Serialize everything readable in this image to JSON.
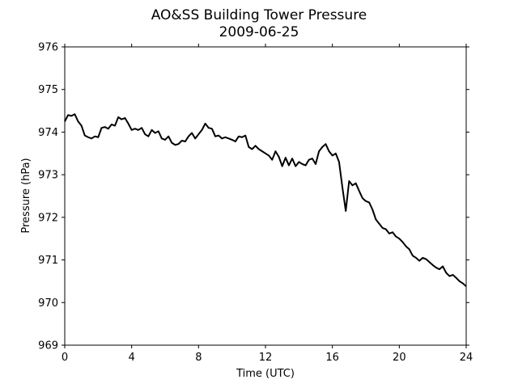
{
  "chart_data": {
    "type": "line",
    "title": "AO&SS Building Tower Pressure",
    "subtitle": "2009-06-25",
    "xlabel": "Time (UTC)",
    "ylabel": "Pressure (hPa)",
    "xlim": [
      0,
      24
    ],
    "ylim": [
      969,
      976
    ],
    "xticks": [
      0,
      4,
      8,
      12,
      16,
      20,
      24
    ],
    "yticks": [
      969,
      970,
      971,
      972,
      973,
      974,
      975,
      976
    ],
    "grid": false,
    "line_color": "#000000",
    "series": [
      {
        "x": [
          0,
          0.2,
          0.4,
          0.6,
          0.8,
          1.0,
          1.2,
          1.4,
          1.6,
          1.8,
          2.0,
          2.2,
          2.4,
          2.6,
          2.8,
          3.0,
          3.2,
          3.4,
          3.6,
          3.8,
          4.0,
          4.2,
          4.4,
          4.6,
          4.8,
          5.0,
          5.2,
          5.4,
          5.6,
          5.8,
          6.0,
          6.2,
          6.4,
          6.6,
          6.8,
          7.0,
          7.2,
          7.4,
          7.6,
          7.8,
          8.0,
          8.2,
          8.4,
          8.6,
          8.8,
          9.0,
          9.2,
          9.4,
          9.6,
          9.8,
          10.0,
          10.2,
          10.4,
          10.6,
          10.8,
          11.0,
          11.2,
          11.4,
          11.6,
          11.8,
          12.0,
          12.2,
          12.4,
          12.6,
          12.8,
          13.0,
          13.2,
          13.4,
          13.6,
          13.8,
          14.0,
          14.2,
          14.4,
          14.6,
          14.8,
          15.0,
          15.2,
          15.4,
          15.6,
          15.8,
          16.0,
          16.2,
          16.4,
          16.6,
          16.8,
          17.0,
          17.2,
          17.4,
          17.6,
          17.8,
          18.0,
          18.2,
          18.4,
          18.6,
          18.8,
          19.0,
          19.2,
          19.4,
          19.6,
          19.8,
          20.0,
          20.2,
          20.4,
          20.6,
          20.8,
          21.0,
          21.2,
          21.4,
          21.6,
          21.8,
          22.0,
          22.2,
          22.4,
          22.6,
          22.8,
          23.0,
          23.2,
          23.4,
          23.6,
          23.8,
          24.0
        ],
        "y": [
          974.25,
          974.4,
          974.38,
          974.42,
          974.25,
          974.15,
          973.92,
          973.88,
          973.85,
          973.9,
          973.88,
          974.1,
          974.12,
          974.08,
          974.18,
          974.15,
          974.35,
          974.3,
          974.33,
          974.2,
          974.05,
          974.08,
          974.05,
          974.1,
          973.95,
          973.9,
          974.05,
          973.98,
          974.02,
          973.85,
          973.82,
          973.9,
          973.75,
          973.7,
          973.72,
          973.8,
          973.78,
          973.9,
          973.98,
          973.85,
          973.95,
          974.05,
          974.2,
          974.1,
          974.08,
          973.9,
          973.92,
          973.85,
          973.88,
          973.85,
          973.82,
          973.78,
          973.9,
          973.88,
          973.92,
          973.65,
          973.6,
          973.68,
          973.6,
          973.55,
          973.5,
          973.45,
          973.35,
          973.55,
          973.42,
          973.2,
          973.4,
          973.22,
          973.38,
          973.2,
          973.3,
          973.25,
          973.22,
          973.35,
          973.38,
          973.25,
          973.55,
          973.65,
          973.72,
          973.55,
          973.45,
          973.5,
          973.3,
          972.7,
          972.15,
          972.85,
          972.75,
          972.8,
          972.62,
          972.45,
          972.38,
          972.35,
          972.18,
          971.95,
          971.85,
          971.75,
          971.72,
          971.62,
          971.65,
          971.55,
          971.5,
          971.42,
          971.32,
          971.25,
          971.1,
          971.05,
          970.98,
          971.05,
          971.02,
          970.95,
          970.88,
          970.82,
          970.78,
          970.85,
          970.7,
          970.62,
          970.65,
          970.58,
          970.5,
          970.45,
          970.38
        ]
      }
    ]
  }
}
